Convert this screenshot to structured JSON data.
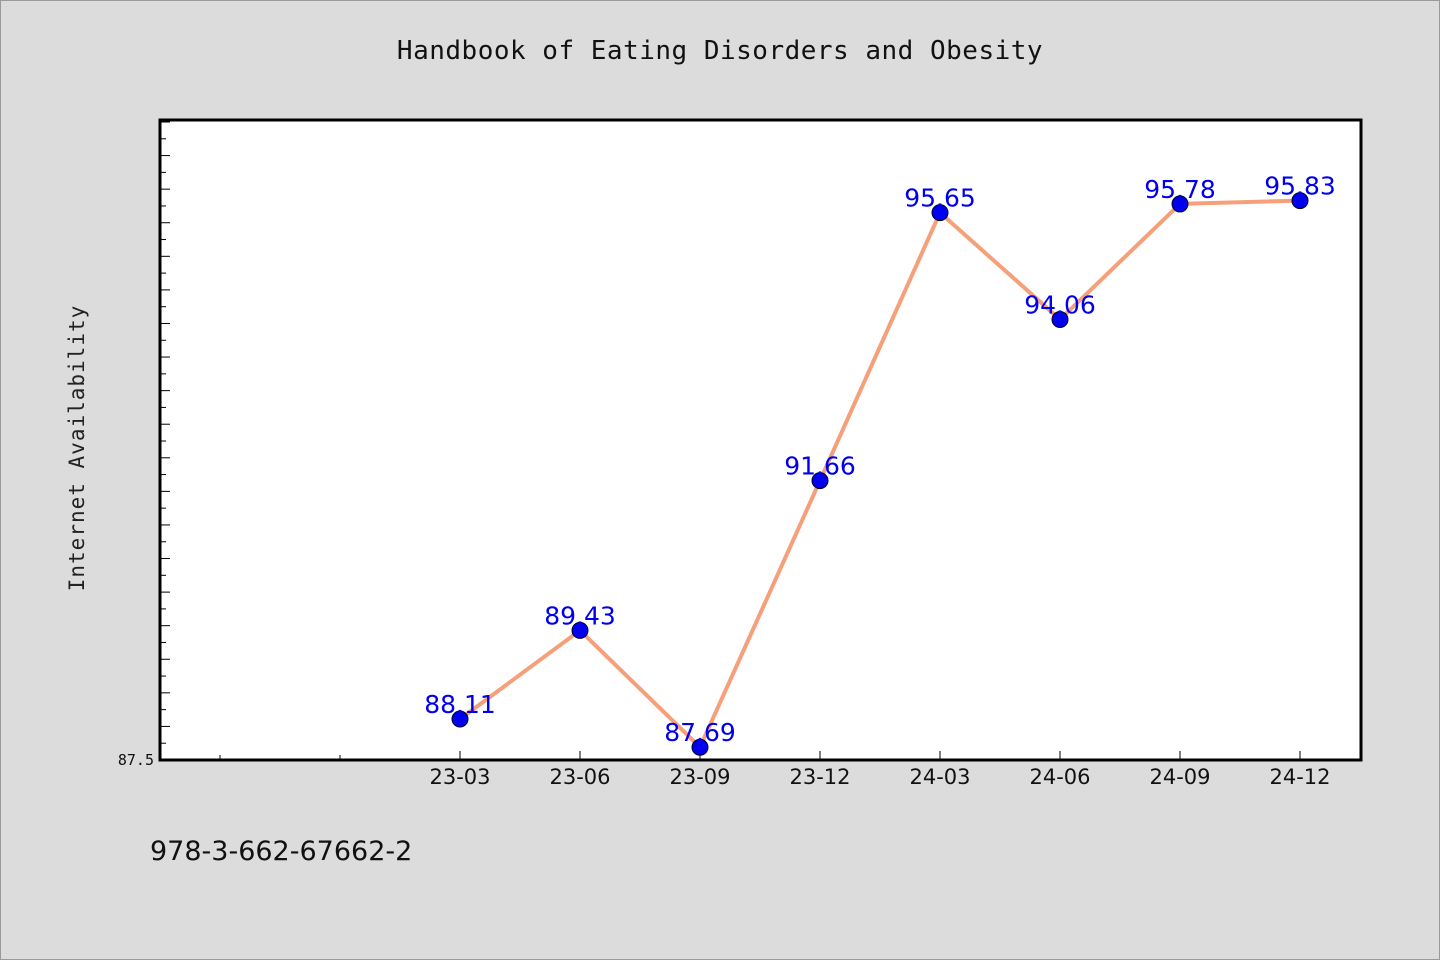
{
  "isbn": "978-3-662-67662-2",
  "colors": {
    "background": "#dcdcdc",
    "plot_background": "#ffffff",
    "line": "#f5a07a",
    "marker": "#0000ee",
    "data_label": "#0000ee"
  },
  "chart_data": {
    "type": "line",
    "title": "Handbook of Eating Disorders and Obesity",
    "xlabel": "",
    "ylabel": "Internet Availability",
    "categories": [
      "23-03",
      "23-06",
      "23-09",
      "23-12",
      "24-03",
      "24-06",
      "24-09",
      "24-12"
    ],
    "values": [
      88.11,
      89.43,
      87.69,
      91.66,
      95.65,
      94.06,
      95.78,
      95.83
    ],
    "data_labels": [
      "88.11",
      "89.43",
      "87.69",
      "91.66",
      "95.65",
      "94.06",
      "95.78",
      "95.83"
    ],
    "y_tick_labels": [
      "87.5"
    ],
    "ylim": [
      87.5,
      97.0
    ],
    "grid": false,
    "legend": "none"
  }
}
